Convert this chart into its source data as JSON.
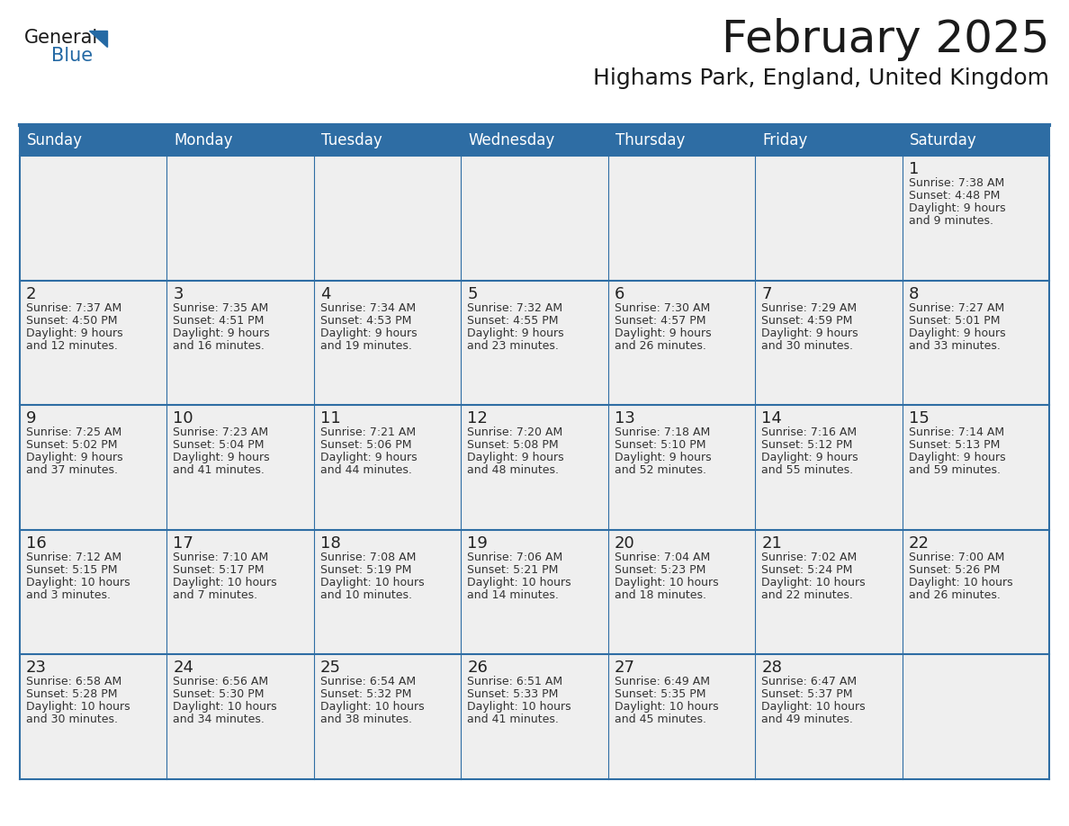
{
  "title": "February 2025",
  "subtitle": "Highams Park, England, United Kingdom",
  "header_color": "#2E6DA4",
  "header_text_color": "#FFFFFF",
  "background_color": "#FFFFFF",
  "cell_bg_color": "#EFEFEF",
  "day_number_color": "#222222",
  "info_text_color": "#333333",
  "days_of_week": [
    "Sunday",
    "Monday",
    "Tuesday",
    "Wednesday",
    "Thursday",
    "Friday",
    "Saturday"
  ],
  "weeks": [
    [
      {
        "day": "",
        "info": ""
      },
      {
        "day": "",
        "info": ""
      },
      {
        "day": "",
        "info": ""
      },
      {
        "day": "",
        "info": ""
      },
      {
        "day": "",
        "info": ""
      },
      {
        "day": "",
        "info": ""
      },
      {
        "day": "1",
        "info": "Sunrise: 7:38 AM\nSunset: 4:48 PM\nDaylight: 9 hours\nand 9 minutes."
      }
    ],
    [
      {
        "day": "2",
        "info": "Sunrise: 7:37 AM\nSunset: 4:50 PM\nDaylight: 9 hours\nand 12 minutes."
      },
      {
        "day": "3",
        "info": "Sunrise: 7:35 AM\nSunset: 4:51 PM\nDaylight: 9 hours\nand 16 minutes."
      },
      {
        "day": "4",
        "info": "Sunrise: 7:34 AM\nSunset: 4:53 PM\nDaylight: 9 hours\nand 19 minutes."
      },
      {
        "day": "5",
        "info": "Sunrise: 7:32 AM\nSunset: 4:55 PM\nDaylight: 9 hours\nand 23 minutes."
      },
      {
        "day": "6",
        "info": "Sunrise: 7:30 AM\nSunset: 4:57 PM\nDaylight: 9 hours\nand 26 minutes."
      },
      {
        "day": "7",
        "info": "Sunrise: 7:29 AM\nSunset: 4:59 PM\nDaylight: 9 hours\nand 30 minutes."
      },
      {
        "day": "8",
        "info": "Sunrise: 7:27 AM\nSunset: 5:01 PM\nDaylight: 9 hours\nand 33 minutes."
      }
    ],
    [
      {
        "day": "9",
        "info": "Sunrise: 7:25 AM\nSunset: 5:02 PM\nDaylight: 9 hours\nand 37 minutes."
      },
      {
        "day": "10",
        "info": "Sunrise: 7:23 AM\nSunset: 5:04 PM\nDaylight: 9 hours\nand 41 minutes."
      },
      {
        "day": "11",
        "info": "Sunrise: 7:21 AM\nSunset: 5:06 PM\nDaylight: 9 hours\nand 44 minutes."
      },
      {
        "day": "12",
        "info": "Sunrise: 7:20 AM\nSunset: 5:08 PM\nDaylight: 9 hours\nand 48 minutes."
      },
      {
        "day": "13",
        "info": "Sunrise: 7:18 AM\nSunset: 5:10 PM\nDaylight: 9 hours\nand 52 minutes."
      },
      {
        "day": "14",
        "info": "Sunrise: 7:16 AM\nSunset: 5:12 PM\nDaylight: 9 hours\nand 55 minutes."
      },
      {
        "day": "15",
        "info": "Sunrise: 7:14 AM\nSunset: 5:13 PM\nDaylight: 9 hours\nand 59 minutes."
      }
    ],
    [
      {
        "day": "16",
        "info": "Sunrise: 7:12 AM\nSunset: 5:15 PM\nDaylight: 10 hours\nand 3 minutes."
      },
      {
        "day": "17",
        "info": "Sunrise: 7:10 AM\nSunset: 5:17 PM\nDaylight: 10 hours\nand 7 minutes."
      },
      {
        "day": "18",
        "info": "Sunrise: 7:08 AM\nSunset: 5:19 PM\nDaylight: 10 hours\nand 10 minutes."
      },
      {
        "day": "19",
        "info": "Sunrise: 7:06 AM\nSunset: 5:21 PM\nDaylight: 10 hours\nand 14 minutes."
      },
      {
        "day": "20",
        "info": "Sunrise: 7:04 AM\nSunset: 5:23 PM\nDaylight: 10 hours\nand 18 minutes."
      },
      {
        "day": "21",
        "info": "Sunrise: 7:02 AM\nSunset: 5:24 PM\nDaylight: 10 hours\nand 22 minutes."
      },
      {
        "day": "22",
        "info": "Sunrise: 7:00 AM\nSunset: 5:26 PM\nDaylight: 10 hours\nand 26 minutes."
      }
    ],
    [
      {
        "day": "23",
        "info": "Sunrise: 6:58 AM\nSunset: 5:28 PM\nDaylight: 10 hours\nand 30 minutes."
      },
      {
        "day": "24",
        "info": "Sunrise: 6:56 AM\nSunset: 5:30 PM\nDaylight: 10 hours\nand 34 minutes."
      },
      {
        "day": "25",
        "info": "Sunrise: 6:54 AM\nSunset: 5:32 PM\nDaylight: 10 hours\nand 38 minutes."
      },
      {
        "day": "26",
        "info": "Sunrise: 6:51 AM\nSunset: 5:33 PM\nDaylight: 10 hours\nand 41 minutes."
      },
      {
        "day": "27",
        "info": "Sunrise: 6:49 AM\nSunset: 5:35 PM\nDaylight: 10 hours\nand 45 minutes."
      },
      {
        "day": "28",
        "info": "Sunrise: 6:47 AM\nSunset: 5:37 PM\nDaylight: 10 hours\nand 49 minutes."
      },
      {
        "day": "",
        "info": ""
      }
    ]
  ],
  "logo_color_general": "#1a1a1a",
  "logo_color_blue": "#2469A4",
  "border_color": "#2E6DA4",
  "title_fontsize": 36,
  "subtitle_fontsize": 18,
  "header_fontsize": 12,
  "day_num_fontsize": 13,
  "info_fontsize": 9,
  "n_cols": 7,
  "n_weeks": 5
}
